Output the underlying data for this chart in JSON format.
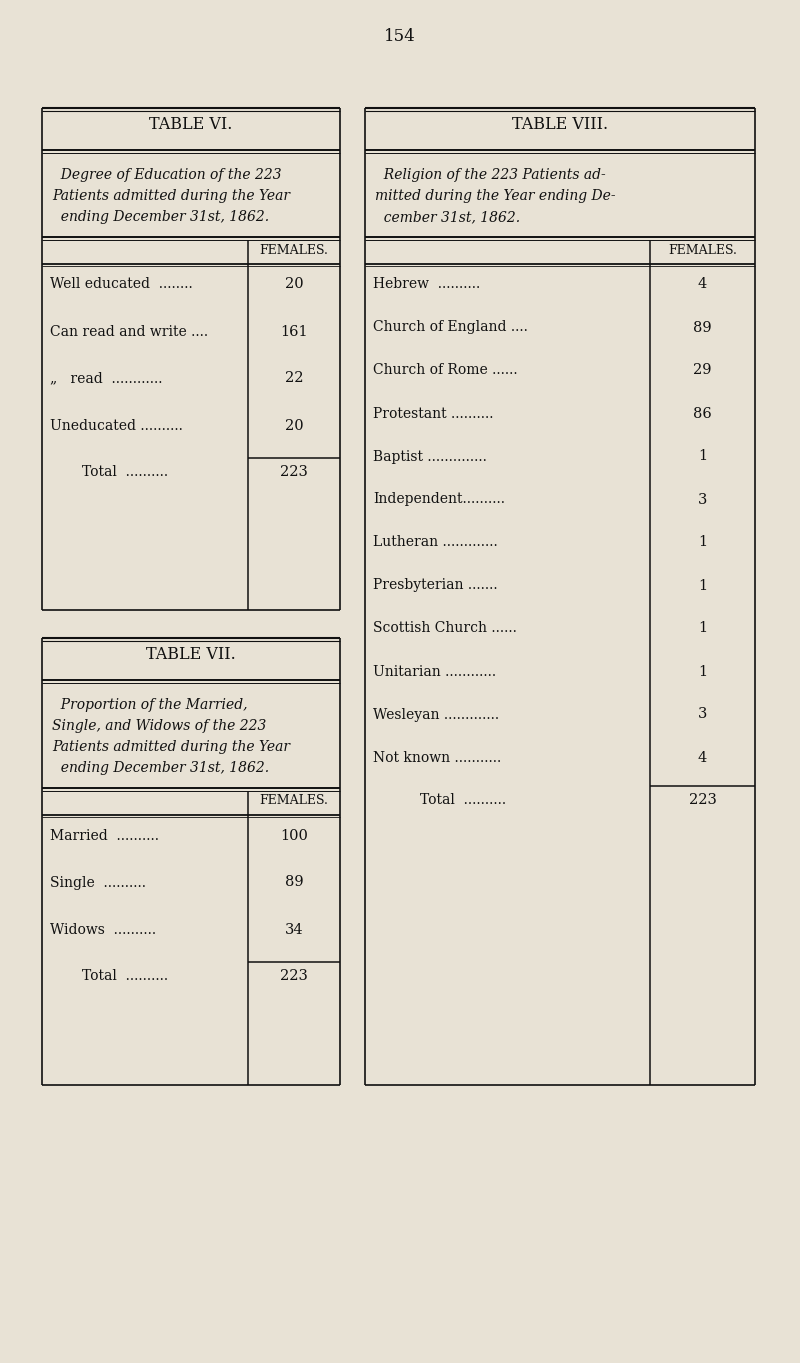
{
  "bg_color": "#e8e2d5",
  "page_number": "154",
  "table6": {
    "title": "TABLE VI.",
    "desc_lines": [
      "  Degree of Education of the 223",
      "Patients admitted during the Year",
      "  ending December 31st, 1862."
    ],
    "col_header": "FEMALES.",
    "rows": [
      {
        "label": "Well educated  ........",
        "value": "20"
      },
      {
        "label": "Can read and write ....",
        "value": "161"
      },
      {
        "label": "„   read  ............",
        "value": "22"
      },
      {
        "label": "Uneducated ..........",
        "value": "20"
      }
    ],
    "total_label": "Total  ..........",
    "total_value": "223"
  },
  "table7": {
    "title": "TABLE VII.",
    "desc_lines": [
      "  Proportion of the Married,",
      "Single, and Widows of the 223",
      "Patients admitted during the Year",
      "  ending December 31st, 1862."
    ],
    "col_header": "FEMALES.",
    "rows": [
      {
        "label": "Married  ..........",
        "value": "100"
      },
      {
        "label": "Single  ..........",
        "value": "89"
      },
      {
        "label": "Widows  ..........",
        "value": "34"
      }
    ],
    "total_label": "Total  ..........",
    "total_value": "223"
  },
  "table8": {
    "title": "TABLE VIII.",
    "desc_lines": [
      "  Religion of the 223 Patients ad-",
      "mitted during the Year ending De-",
      "  cember 31st, 1862."
    ],
    "col_header": "FEMALES.",
    "rows": [
      {
        "label": "Hebrew  ..........",
        "value": "4"
      },
      {
        "label": "Church of England ....",
        "value": "89"
      },
      {
        "label": "Church of Rome ......",
        "value": "29"
      },
      {
        "label": "Protestant ..........",
        "value": "86"
      },
      {
        "label": "Baptist ..............",
        "value": "1"
      },
      {
        "label": "Independent..........",
        "value": "3"
      },
      {
        "label": "Lutheran .............",
        "value": "1"
      },
      {
        "label": "Presbyterian .......",
        "value": "1"
      },
      {
        "label": "Scottish Church ......",
        "value": "1"
      },
      {
        "label": "Unitarian ............",
        "value": "1"
      },
      {
        "label": "Wesleyan .............",
        "value": "3"
      },
      {
        "label": "Not known ...........",
        "value": "4"
      }
    ],
    "total_label": "Total  ..........",
    "total_value": "223"
  }
}
